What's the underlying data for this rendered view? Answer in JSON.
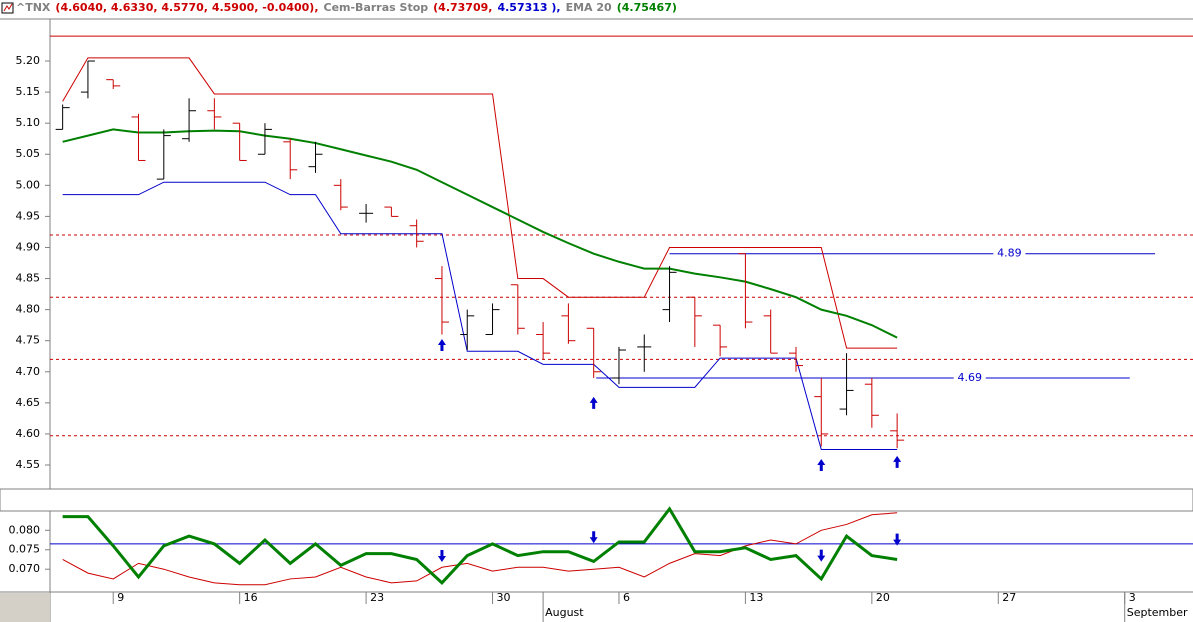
{
  "header": {
    "symbol": "^TNX",
    "quote": "(4.6040, 4.6330, 4.5770, 4.5900, -0.0400),",
    "stop_name": "Cem-Barras Stop",
    "stop_upper": "(4.73709,",
    "stop_lower": "4.57313 ),",
    "ema_name": "EMA 20",
    "ema_value": "(4.75467)"
  },
  "chart_data": [
    {
      "type": "ohlc",
      "x": [
        0,
        1,
        2,
        3,
        4,
        5,
        6,
        7,
        8,
        9,
        10,
        11,
        12,
        13,
        14,
        15,
        16,
        17,
        18,
        19,
        20,
        21,
        22,
        23,
        24,
        25,
        26,
        27,
        28,
        29,
        30,
        31,
        32,
        33
      ],
      "open": [
        5.09,
        5.15,
        5.17,
        5.11,
        5.01,
        5.075,
        5.12,
        5.1,
        5.05,
        5.07,
        5.03,
        5.0,
        4.955,
        4.965,
        4.935,
        4.85,
        4.76,
        4.76,
        4.84,
        4.76,
        4.79,
        4.77,
        4.69,
        4.74,
        4.8,
        4.82,
        4.775,
        4.89,
        4.79,
        4.73,
        4.66,
        4.64,
        4.68,
        4.605
      ],
      "high": [
        5.13,
        5.2,
        5.17,
        5.115,
        5.09,
        5.14,
        5.14,
        5.1,
        5.1,
        5.075,
        5.07,
        5.01,
        4.97,
        4.965,
        4.945,
        4.87,
        4.8,
        4.81,
        4.84,
        4.78,
        4.81,
        4.77,
        4.74,
        4.76,
        4.87,
        4.82,
        4.775,
        4.89,
        4.8,
        4.74,
        4.69,
        4.73,
        4.69,
        4.633
      ],
      "low": [
        5.09,
        5.14,
        5.155,
        5.04,
        5.01,
        5.07,
        5.09,
        5.04,
        5.05,
        5.01,
        5.02,
        4.96,
        4.94,
        4.95,
        4.9,
        4.76,
        4.735,
        4.76,
        4.76,
        4.72,
        4.745,
        4.69,
        4.68,
        4.7,
        4.78,
        4.74,
        4.725,
        4.77,
        4.73,
        4.7,
        4.58,
        4.63,
        4.61,
        4.577
      ],
      "close": [
        5.125,
        5.2,
        5.16,
        5.04,
        5.08,
        5.12,
        5.11,
        5.04,
        5.09,
        5.025,
        5.05,
        4.965,
        4.955,
        4.95,
        4.91,
        4.78,
        4.79,
        4.8,
        4.77,
        4.73,
        4.75,
        4.7,
        4.735,
        4.74,
        4.86,
        4.79,
        4.74,
        4.78,
        4.73,
        4.71,
        4.6,
        4.67,
        4.63,
        4.59
      ],
      "up_color": "#000000",
      "down_color": "#cc0000",
      "series": [
        {
          "color": "#cc0000",
          "width": 1,
          "values": [
            5.135,
            5.205,
            5.205,
            5.205,
            5.205,
            5.205,
            5.147,
            5.147,
            5.147,
            5.147,
            5.147,
            5.147,
            5.147,
            5.147,
            5.147,
            5.147,
            5.147,
            5.147,
            4.85,
            4.85,
            4.82,
            4.82,
            4.82,
            4.82,
            4.9,
            4.9,
            4.9,
            4.9,
            4.9,
            4.9,
            4.9,
            4.738,
            4.738,
            4.738
          ]
        },
        {
          "color": "#0000cc",
          "width": 1,
          "values": [
            4.985,
            4.985,
            4.985,
            4.985,
            5.005,
            5.005,
            5.005,
            5.005,
            5.005,
            4.985,
            4.985,
            4.922,
            4.922,
            4.922,
            4.922,
            4.922,
            4.733,
            4.733,
            4.733,
            4.712,
            4.712,
            4.712,
            4.675,
            4.675,
            4.675,
            4.675,
            4.722,
            4.722,
            4.722,
            4.722,
            4.575,
            4.575,
            4.575,
            4.575
          ]
        },
        {
          "name": "EMA 20",
          "color": "#008000",
          "width": 2,
          "values": [
            5.07,
            5.08,
            5.09,
            5.085,
            5.085,
            5.087,
            5.088,
            5.087,
            5.08,
            5.075,
            5.068,
            5.058,
            5.048,
            5.038,
            5.025,
            5.005,
            4.985,
            4.965,
            4.945,
            4.925,
            4.907,
            4.89,
            4.877,
            4.866,
            4.866,
            4.858,
            4.852,
            4.845,
            4.833,
            4.82,
            4.8,
            4.79,
            4.775,
            4.755
          ]
        }
      ],
      "hlines": [
        {
          "value": 5.24,
          "color": "#cc0000",
          "dash": false
        },
        {
          "value": 4.92,
          "color": "#cc0000",
          "dash": true
        },
        {
          "value": 4.82,
          "color": "#cc0000",
          "dash": true
        },
        {
          "value": 4.72,
          "color": "#cc0000",
          "dash": true
        },
        {
          "value": 4.597,
          "color": "#cc0000",
          "dash": true
        }
      ],
      "levels": [
        {
          "value": 4.89,
          "x": [
            24,
            43.2
          ],
          "color": "#0000cc"
        },
        {
          "value": 4.69,
          "x": [
            21.1,
            42.2
          ],
          "color": "#0000cc"
        }
      ],
      "up_arrows": {
        "color": "#0000cc",
        "x": [
          15,
          21,
          30,
          33
        ],
        "y": [
          4.743,
          4.65,
          4.55,
          4.555
        ]
      },
      "ylim": [
        4.513,
        5.266
      ],
      "yticks": [
        {
          "value": 4.55,
          "label": "4.55"
        },
        {
          "value": 4.6,
          "label": "4.60"
        },
        {
          "value": 4.65,
          "label": "4.65"
        },
        {
          "value": 4.7,
          "label": "4.70"
        },
        {
          "value": 4.75,
          "label": "4.75"
        },
        {
          "value": 4.8,
          "label": "4.80"
        },
        {
          "value": 4.85,
          "label": "4.85"
        },
        {
          "value": 4.9,
          "label": "4.90"
        },
        {
          "value": 4.95,
          "label": "4.95"
        },
        {
          "value": 5.0,
          "label": "5.00"
        },
        {
          "value": 5.05,
          "label": "5.05"
        },
        {
          "value": 5.1,
          "label": "5.10"
        },
        {
          "value": 5.15,
          "label": "5.15"
        },
        {
          "value": 5.2,
          "label": "5.20"
        }
      ]
    },
    {
      "type": "line",
      "x": [
        0,
        1,
        2,
        3,
        4,
        5,
        6,
        7,
        8,
        9,
        10,
        11,
        12,
        13,
        14,
        15,
        16,
        17,
        18,
        19,
        20,
        21,
        22,
        23,
        24,
        25,
        26,
        27,
        28,
        29,
        30,
        31,
        32,
        33
      ],
      "series": [
        {
          "color": "#cc0000",
          "width": 1,
          "values": [
            0.0725,
            0.069,
            0.0675,
            0.0715,
            0.07,
            0.068,
            0.0665,
            0.066,
            0.066,
            0.0675,
            0.068,
            0.0705,
            0.068,
            0.0665,
            0.067,
            0.0705,
            0.0715,
            0.0695,
            0.0705,
            0.0705,
            0.0695,
            0.07,
            0.0705,
            0.068,
            0.0715,
            0.074,
            0.0735,
            0.076,
            0.0775,
            0.0765,
            0.08,
            0.0815,
            0.084,
            0.0845
          ]
        },
        {
          "color": "#008000",
          "width": 3,
          "values": [
            0.0835,
            0.0835,
            0.076,
            0.068,
            0.076,
            0.0785,
            0.0765,
            0.0715,
            0.0775,
            0.0715,
            0.0765,
            0.071,
            0.074,
            0.074,
            0.0725,
            0.0665,
            0.0735,
            0.0765,
            0.0735,
            0.0745,
            0.0745,
            0.072,
            0.077,
            0.077,
            0.0855,
            0.0745,
            0.0745,
            0.0755,
            0.0725,
            0.0735,
            0.0675,
            0.0785,
            0.0735,
            0.0725
          ]
        }
      ],
      "hlines": [
        {
          "value": 0.0765,
          "color": "#0000cc",
          "dash": false
        }
      ],
      "down_arrows": {
        "color": "#0000cc",
        "x": [
          15,
          21,
          30,
          33
        ],
        "y": [
          0.0734,
          0.0782,
          0.0735,
          0.0776
        ]
      },
      "ylim": [
        0.0644,
        0.0847
      ],
      "yticks": [
        {
          "value": 0.07,
          "label": "0.070"
        },
        {
          "value": 0.075,
          "label": "0.075"
        },
        {
          "value": 0.08,
          "label": "0.080"
        }
      ],
      "xlim": [
        -0.5,
        44.7
      ],
      "xticks": [
        {
          "value": 2,
          "label": "9"
        },
        {
          "value": 7,
          "label": "16"
        },
        {
          "value": 12,
          "label": "23"
        },
        {
          "value": 17,
          "label": "30"
        },
        {
          "value": 22,
          "label": "6"
        },
        {
          "value": 27,
          "label": "13"
        },
        {
          "value": 32,
          "label": "20"
        },
        {
          "value": 37,
          "label": "27"
        },
        {
          "value": 42,
          "label": "3"
        }
      ],
      "month_ticks": [
        {
          "value": 19,
          "label": "August"
        },
        {
          "value": 42,
          "label": "September"
        }
      ]
    }
  ]
}
